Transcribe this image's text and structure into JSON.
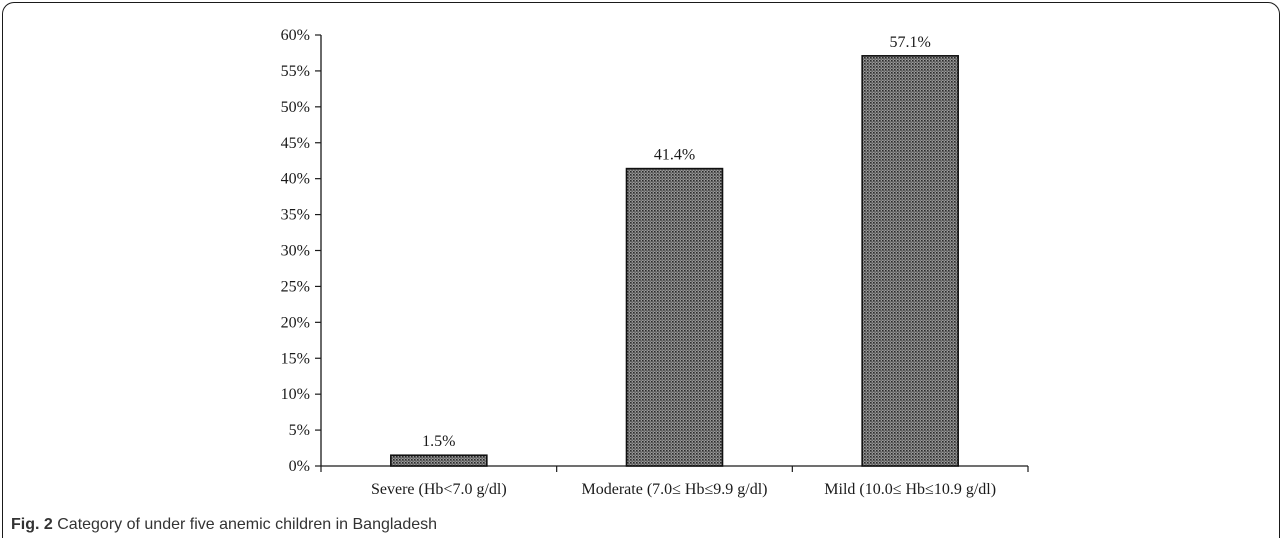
{
  "figure": {
    "label": "Fig. 2",
    "caption": "Category of under five anemic children in Bangladesh"
  },
  "chart_data": {
    "type": "bar",
    "categories": [
      "Severe (Hb<7.0 g/dl)",
      "Moderate (7.0≤ Hb≤9.9 g/dl)",
      "Mild (10.0≤ Hb≤10.9 g/dl)"
    ],
    "values": [
      1.5,
      41.4,
      57.1
    ],
    "data_labels": [
      "1.5%",
      "41.4%",
      "57.1%"
    ],
    "title": "",
    "xlabel": "",
    "ylabel": "",
    "ylim": [
      0,
      60
    ],
    "yticks": [
      0,
      5,
      10,
      15,
      20,
      25,
      30,
      35,
      40,
      45,
      50,
      55,
      60
    ],
    "ytick_labels": [
      "0%",
      "5%",
      "10%",
      "15%",
      "20%",
      "25%",
      "30%",
      "35%",
      "40%",
      "45%",
      "50%",
      "55%",
      "60%"
    ],
    "grid": false,
    "legend": "none",
    "bar_fill": "dotted-dark-gray",
    "bar_color": "#6e6e6e",
    "bar_edge_color": "#111111"
  }
}
